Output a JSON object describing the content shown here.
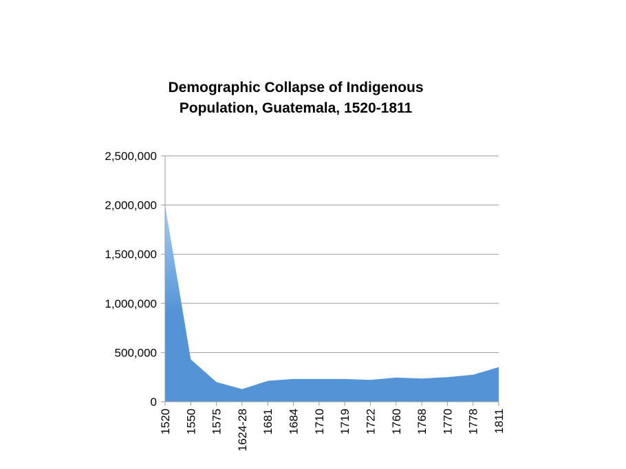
{
  "chart_data": {
    "type": "area",
    "title_lines": [
      "Demographic Collapse of Indigenous",
      "Population, Guatemala, 1520-1811"
    ],
    "categories": [
      "1520",
      "1550",
      "1575",
      "1624-28",
      "1681",
      "1684",
      "1710",
      "1719",
      "1722",
      "1760",
      "1768",
      "1770",
      "1778",
      "1811"
    ],
    "values": [
      2000000,
      430000,
      200000,
      128000,
      212000,
      231000,
      231000,
      231000,
      222000,
      245000,
      236000,
      250000,
      274000,
      352000
    ],
    "ylim": [
      0,
      2500000
    ],
    "yticks": [
      0,
      500000,
      1000000,
      1500000,
      2000000,
      2500000
    ],
    "ytick_labels": [
      "0",
      "500,000",
      "1,000,000",
      "1,500,000",
      "2,000,000",
      "2,500,000"
    ],
    "grid": true,
    "legend": "none",
    "colors": {
      "fill_top": "#a9cdf5",
      "fill_bottom": "#5294d6",
      "grid": "#999999"
    }
  }
}
